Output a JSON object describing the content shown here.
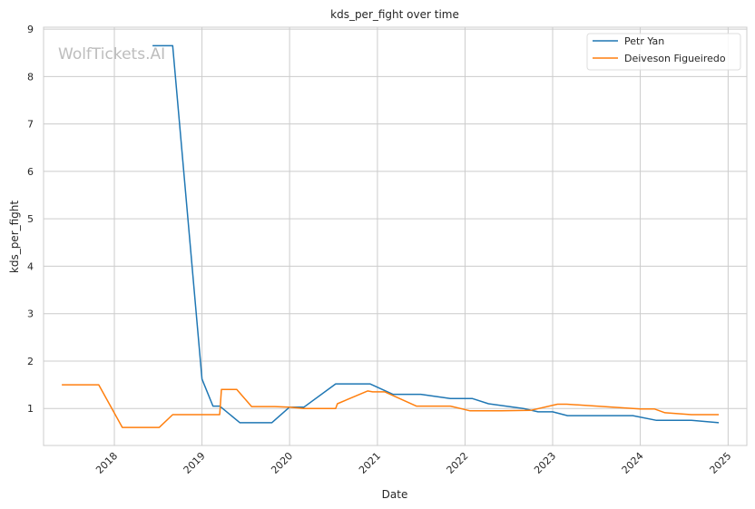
{
  "watermark": "WolfTickets.AI",
  "chart_data": {
    "type": "line",
    "title": "kds_per_fight over time",
    "xlabel": "Date",
    "ylabel": "kds_per_fight",
    "xlim": [
      "2017-03-12",
      "2025-03-20"
    ],
    "ylim": [
      0.22,
      9.04
    ],
    "x_ticks": [
      "2018-01-01",
      "2019-01-01",
      "2020-01-01",
      "2021-01-01",
      "2022-01-01",
      "2023-01-01",
      "2024-01-01",
      "2025-01-01"
    ],
    "x_tick_labels": [
      "2018",
      "2019",
      "2020",
      "2021",
      "2022",
      "2023",
      "2024",
      "2025"
    ],
    "y_ticks": [
      1,
      2,
      3,
      4,
      5,
      6,
      7,
      8,
      9
    ],
    "y_tick_labels": [
      "1",
      "2",
      "3",
      "4",
      "5",
      "6",
      "7",
      "8",
      "9"
    ],
    "grid": true,
    "legend_position": "top-right",
    "series": [
      {
        "name": "Petr Yan",
        "color": "#1f77b4",
        "points": [
          [
            "2018-06-09",
            8.65
          ],
          [
            "2018-09-01",
            8.65
          ],
          [
            "2019-01-01",
            1.62
          ],
          [
            "2019-02-16",
            1.05
          ],
          [
            "2019-03-16",
            1.05
          ],
          [
            "2019-06-08",
            0.7
          ],
          [
            "2019-10-19",
            0.7
          ],
          [
            "2020-01-01",
            1.03
          ],
          [
            "2020-03-01",
            1.03
          ],
          [
            "2020-07-11",
            1.52
          ],
          [
            "2020-12-01",
            1.52
          ],
          [
            "2021-03-06",
            1.3
          ],
          [
            "2021-07-01",
            1.3
          ],
          [
            "2021-11-01",
            1.21
          ],
          [
            "2022-02-01",
            1.21
          ],
          [
            "2022-04-09",
            1.1
          ],
          [
            "2022-09-01",
            1.0
          ],
          [
            "2022-11-01",
            0.93
          ],
          [
            "2023-01-01",
            0.93
          ],
          [
            "2023-03-04",
            0.85
          ],
          [
            "2023-12-01",
            0.85
          ],
          [
            "2024-03-09",
            0.75
          ],
          [
            "2024-08-01",
            0.75
          ],
          [
            "2024-11-23",
            0.7
          ]
        ]
      },
      {
        "name": "Deiveson Figueiredo",
        "color": "#ff7f0e",
        "points": [
          [
            "2017-05-27",
            1.5
          ],
          [
            "2017-10-28",
            1.5
          ],
          [
            "2018-02-03",
            0.6
          ],
          [
            "2018-07-07",
            0.6
          ],
          [
            "2018-09-01",
            0.87
          ],
          [
            "2019-02-02",
            0.87
          ],
          [
            "2019-03-16",
            0.87
          ],
          [
            "2019-03-23",
            1.4
          ],
          [
            "2019-05-26",
            1.4
          ],
          [
            "2019-07-27",
            1.04
          ],
          [
            "2019-11-01",
            1.04
          ],
          [
            "2020-01-01",
            1.03
          ],
          [
            "2020-02-29",
            1.0
          ],
          [
            "2020-07-11",
            1.0
          ],
          [
            "2020-07-18",
            1.1
          ],
          [
            "2020-11-21",
            1.37
          ],
          [
            "2020-12-12",
            1.35
          ],
          [
            "2021-02-01",
            1.35
          ],
          [
            "2021-06-12",
            1.05
          ],
          [
            "2021-11-01",
            1.05
          ],
          [
            "2022-01-22",
            0.95
          ],
          [
            "2022-06-01",
            0.95
          ],
          [
            "2022-10-01",
            0.96
          ],
          [
            "2023-01-21",
            1.09
          ],
          [
            "2023-03-01",
            1.09
          ],
          [
            "2024-01-01",
            0.99
          ],
          [
            "2024-03-01",
            0.99
          ],
          [
            "2024-04-13",
            0.91
          ],
          [
            "2024-08-01",
            0.87
          ],
          [
            "2024-11-23",
            0.87
          ]
        ]
      }
    ]
  }
}
